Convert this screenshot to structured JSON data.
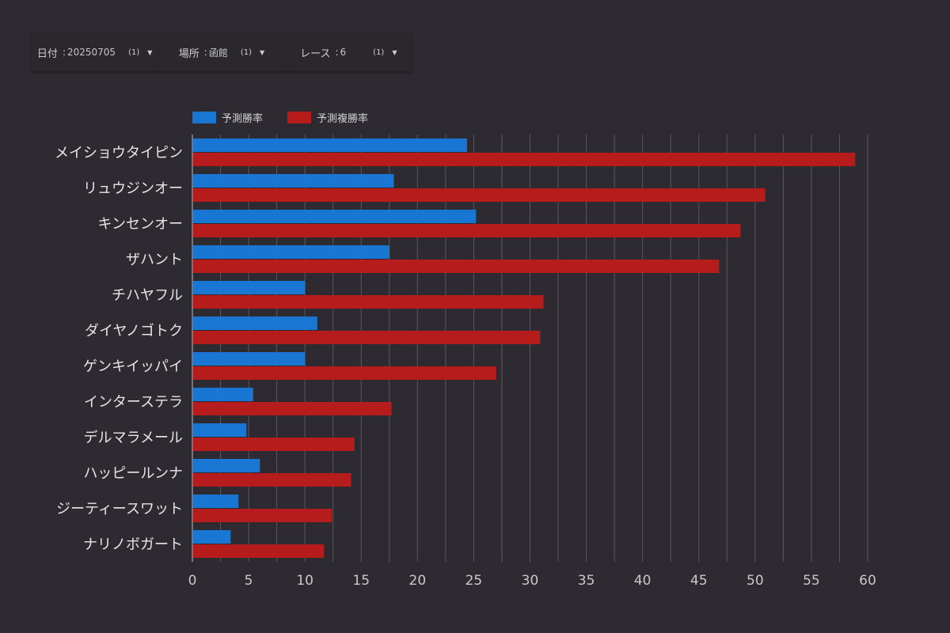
{
  "filters": [
    {
      "label": "日付",
      "value": "20250705",
      "count": "(1)"
    },
    {
      "label": "場所",
      "value": "函館",
      "count": "(1)"
    },
    {
      "label": "レース",
      "value": "6",
      "count": "(1)"
    }
  ],
  "chart_data": {
    "type": "bar",
    "orientation": "horizontal",
    "categories": [
      "メイショウタイピン",
      "リュウジンオー",
      "キンセンオー",
      "ザハント",
      "チハヤフル",
      "ダイヤノゴトク",
      "ゲンキイッパイ",
      "インターステラ",
      "デルマラメール",
      "ハッピールンナ",
      "ジーティースワット",
      "ナリノボガート"
    ],
    "series": [
      {
        "name": "予測勝率",
        "color": "#1976d2",
        "values": [
          24.4,
          17.9,
          25.2,
          17.5,
          10.0,
          11.1,
          10.0,
          5.4,
          4.8,
          6.0,
          4.1,
          3.4
        ]
      },
      {
        "name": "予測複勝率",
        "color": "#b71c1c",
        "values": [
          58.9,
          50.9,
          48.7,
          46.8,
          31.2,
          30.9,
          27.0,
          17.7,
          14.4,
          14.1,
          12.4,
          11.7
        ]
      }
    ],
    "xlim": [
      0,
      60
    ],
    "xticks": [
      0,
      5,
      10,
      15,
      20,
      25,
      30,
      35,
      40,
      45,
      50,
      55,
      60
    ],
    "minor_grid_step": 2.5,
    "grid": true,
    "legend": "top-left"
  }
}
